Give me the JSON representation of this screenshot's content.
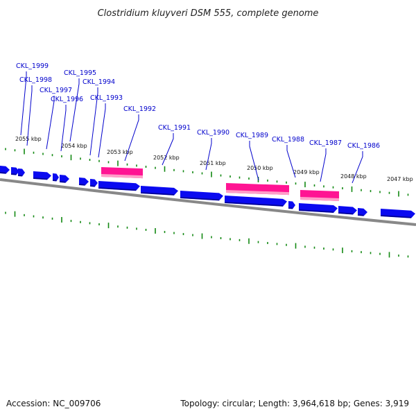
{
  "title": "Clostridium kluyveri DSM 555, complete genome",
  "accession": "Accession: NC_009706",
  "summary": "Topology: circular; Length: 3,964,618 bp; Genes: 3,919",
  "colors": {
    "cds": "#0a0af0",
    "cds_shadow": "#00008a",
    "rna": "#ff1493",
    "rna_light": "#ff9ec8",
    "backbone": "#888888",
    "tick": "#118811",
    "label": "#0000cc"
  },
  "kbp_labels": [
    "2055 kbp",
    "2054 kbp",
    "2053 kbp",
    "2052 kbp",
    "2051 kbp",
    "2050 kbp",
    "2049 kbp",
    "2048 kbp",
    "2047 kbp"
  ],
  "gene_labels": [
    "CKL_1999",
    "CKL_1998",
    "CKL_1997",
    "CKL_1996",
    "CKL_1995",
    "CKL_1994",
    "CKL_1993",
    "CKL_1992",
    "CKL_1991",
    "CKL_1990",
    "CKL_1989",
    "CKL_1988",
    "CKL_1987",
    "CKL_1986"
  ]
}
